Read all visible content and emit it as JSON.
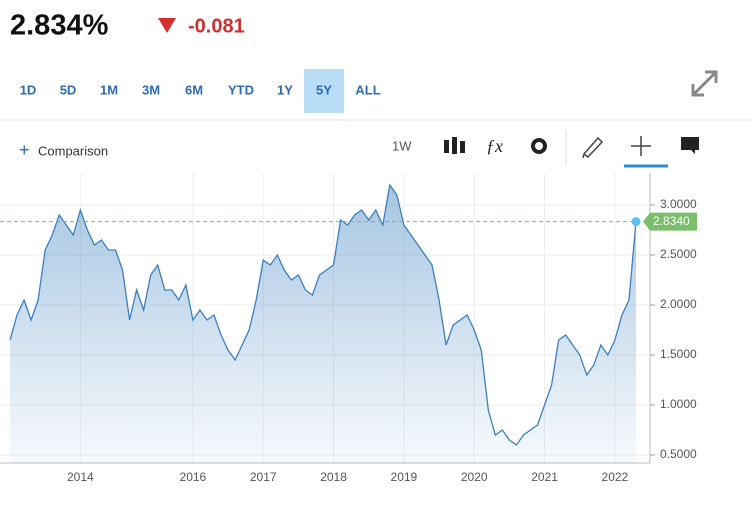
{
  "header": {
    "price": "2.834%",
    "change": "-0.081"
  },
  "ranges": [
    {
      "label": "1D"
    },
    {
      "label": "5D"
    },
    {
      "label": "1M"
    },
    {
      "label": "3M"
    },
    {
      "label": "6M"
    },
    {
      "label": "YTD"
    },
    {
      "label": "1Y"
    },
    {
      "label": "5Y",
      "selected": true
    },
    {
      "label": "ALL"
    }
  ],
  "toolbar": {
    "comparison": "Comparison",
    "interval": "1W"
  },
  "chart_data": {
    "type": "area",
    "color": "#3a7fbf",
    "categories": [
      null,
      null,
      null,
      null,
      null,
      null,
      null,
      null,
      null,
      null,
      "2014",
      null,
      null,
      null,
      null,
      null,
      null,
      null,
      null,
      null,
      null,
      null,
      null,
      null,
      null,
      null,
      "2016",
      null,
      null,
      null,
      null,
      null,
      null,
      null,
      null,
      null,
      "2017",
      null,
      null,
      null,
      null,
      null,
      null,
      null,
      null,
      null,
      "2018",
      null,
      null,
      null,
      null,
      null,
      null,
      null,
      null,
      null,
      "2019",
      null,
      null,
      null,
      null,
      null,
      null,
      null,
      null,
      null,
      "2020",
      null,
      null,
      null,
      null,
      null,
      null,
      null,
      null,
      null,
      "2021",
      null,
      null,
      null,
      null,
      null,
      null,
      null,
      null,
      null,
      "2022",
      null,
      null,
      null
    ],
    "values": [
      1.65,
      1.9,
      2.05,
      1.85,
      2.05,
      2.55,
      2.7,
      2.9,
      2.8,
      2.7,
      2.95,
      2.75,
      2.6,
      2.65,
      2.55,
      2.55,
      2.35,
      1.85,
      2.15,
      1.95,
      2.3,
      2.4,
      2.15,
      2.15,
      2.05,
      2.2,
      1.85,
      1.95,
      1.85,
      1.9,
      1.7,
      1.55,
      1.45,
      1.6,
      1.75,
      2.05,
      2.45,
      2.4,
      2.5,
      2.35,
      2.25,
      2.3,
      2.15,
      2.1,
      2.3,
      2.35,
      2.4,
      2.85,
      2.8,
      2.9,
      2.95,
      2.85,
      2.95,
      2.8,
      3.2,
      3.1,
      2.8,
      2.7,
      2.6,
      2.5,
      2.4,
      2.05,
      1.6,
      1.8,
      1.85,
      1.9,
      1.75,
      1.55,
      0.95,
      0.7,
      0.75,
      0.65,
      0.6,
      0.7,
      0.75,
      0.8,
      1.0,
      1.2,
      1.65,
      1.7,
      1.6,
      1.5,
      1.3,
      1.4,
      1.6,
      1.5,
      1.65,
      1.9,
      2.05,
      2.834
    ],
    "ylim": [
      0.42,
      3.32
    ],
    "yticks": [
      {
        "value": 0.5,
        "label": "0.5000"
      },
      {
        "value": 1,
        "label": "1.0000"
      },
      {
        "value": 1.5,
        "label": "1.5000"
      },
      {
        "value": 2,
        "label": "2.0000"
      },
      {
        "value": 2.5,
        "label": "2.5000"
      },
      {
        "value": 3,
        "label": "3.0000"
      }
    ],
    "reference_line": {
      "value": 2.834,
      "label": "2.8340",
      "color": "#7bbf6a"
    },
    "grid": true
  }
}
